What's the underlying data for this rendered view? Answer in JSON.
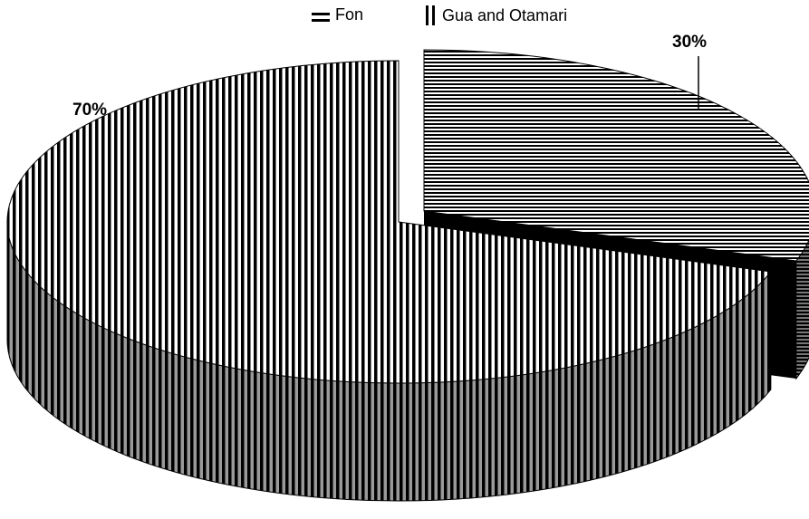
{
  "chart_data": {
    "type": "pie",
    "title": "",
    "categories": [
      "Fon",
      "Gua and Otamari"
    ],
    "values": [
      30,
      70
    ],
    "data_labels": [
      "30%",
      "70%"
    ],
    "legend": [
      "Fon",
      "Gua and Otamari"
    ],
    "legend_position": "top",
    "style": "3d-exploded",
    "patterns": [
      "horizontal-lines",
      "vertical-lines"
    ]
  }
}
